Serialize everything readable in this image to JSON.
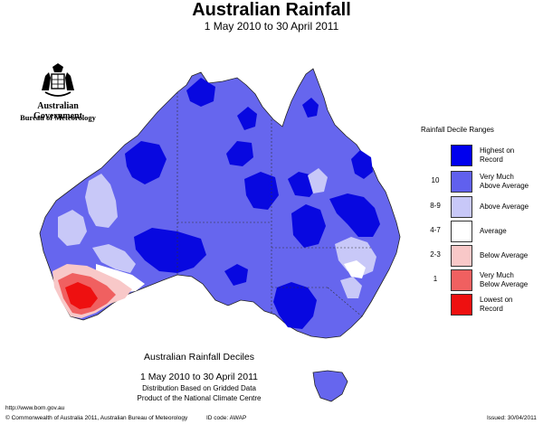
{
  "header": {
    "title": "Australian Rainfall",
    "subtitle": "1 May 2010 to 30 April 2011"
  },
  "branding": {
    "crest_icon": "coat-of-arms-icon",
    "government": "Australian Government",
    "bureau": "Bureau of Meteorology"
  },
  "legend": {
    "title": "Rainfall Decile Ranges",
    "items": [
      {
        "code": "",
        "line1": "Highest on",
        "line2": "Record",
        "color": "#0000ee"
      },
      {
        "code": "10",
        "line1": "Very Much",
        "line2": "Above Average",
        "color": "#6060ee"
      },
      {
        "code": "8-9",
        "line1": "Above Average",
        "line2": "",
        "color": "#c8c8f8"
      },
      {
        "code": "4-7",
        "line1": "Average",
        "line2": "",
        "color": "#ffffff"
      },
      {
        "code": "2-3",
        "line1": "Below Average",
        "line2": "",
        "color": "#f8c8c8"
      },
      {
        "code": "1",
        "line1": "Very Much",
        "line2": "Below Average",
        "color": "#f06060"
      },
      {
        "code": "",
        "line1": "Lowest on",
        "line2": "Record",
        "color": "#ee1010"
      }
    ]
  },
  "map": {
    "name": "Australia",
    "region_colors": {
      "very_much_above": "#6666ee",
      "highest_on_record": "#0808e0",
      "above_average": "#c8c8f8",
      "average": "#ffffff",
      "below_average": "#f8c8c8",
      "very_much_below": "#f06060",
      "lowest_on_record": "#ee1010"
    }
  },
  "caption": {
    "line1": "Australian Rainfall Deciles",
    "line2": "1 May 2010 to 30 April 2011",
    "line3": "Distribution Based on Gridded Data",
    "line4": "Product of the National Climate Centre"
  },
  "footer": {
    "url": "http://www.bom.gov.au",
    "copyright": "© Commonwealth of Australia 2011, Australian Bureau of Meteorology",
    "id_code": "ID code: AWAP",
    "issued": "Issued: 30/04/2011"
  }
}
